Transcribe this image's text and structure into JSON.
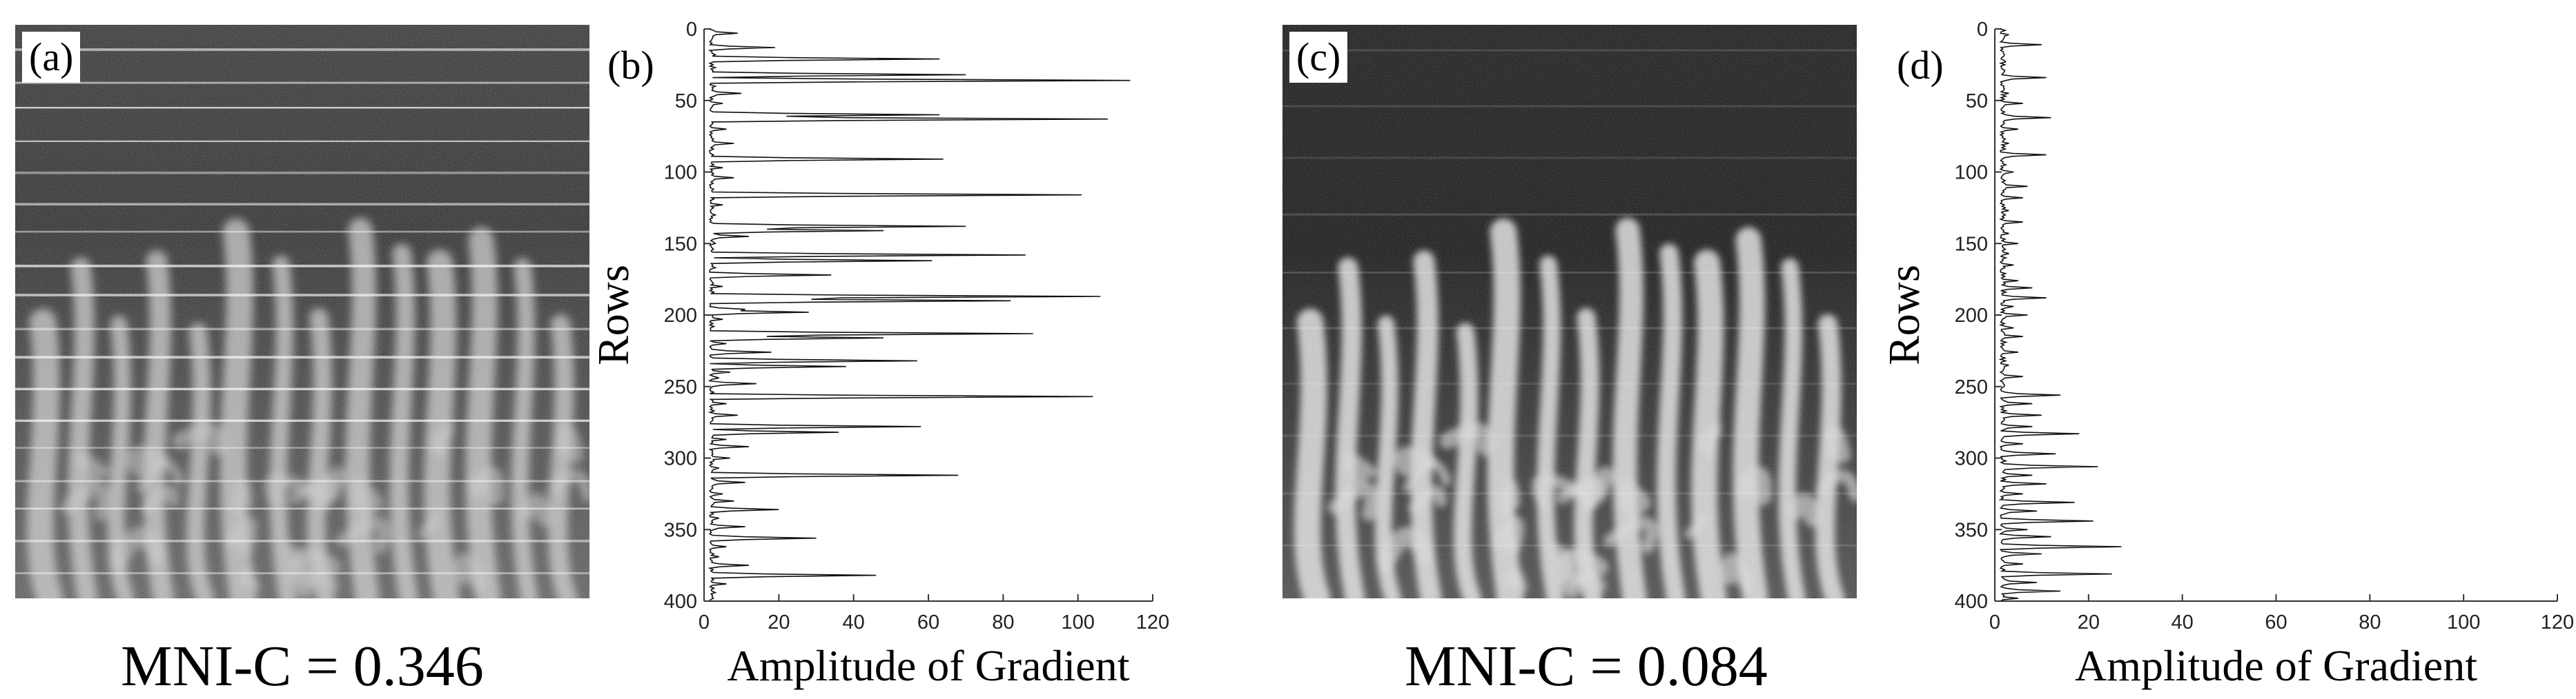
{
  "panels": {
    "a": {
      "tag": "(a)",
      "caption": "MNI-C = 0.346"
    },
    "b": {
      "tag": "(b)"
    },
    "c": {
      "tag": "(c)",
      "caption": "MNI-C = 0.084"
    },
    "d": {
      "tag": "(d)"
    }
  },
  "chart_data": [
    {
      "type": "line",
      "panel": "b",
      "orientation": "horizontal-profile",
      "xlabel": "Amplitude of Gradient",
      "ylabel": "Rows",
      "xlim": [
        0,
        120
      ],
      "ylim": [
        400,
        0
      ],
      "xticks": [
        0,
        20,
        40,
        60,
        80,
        100,
        120
      ],
      "yticks": [
        0,
        50,
        100,
        150,
        200,
        250,
        300,
        350,
        400
      ],
      "grid": false,
      "peaks": [
        [
          3,
          9
        ],
        [
          13,
          19
        ],
        [
          18,
          3
        ],
        [
          21,
          63
        ],
        [
          27,
          3
        ],
        [
          32,
          70
        ],
        [
          36,
          114
        ],
        [
          40,
          3
        ],
        [
          45,
          10
        ],
        [
          52,
          5
        ],
        [
          60,
          63
        ],
        [
          63,
          108
        ],
        [
          70,
          6
        ],
        [
          80,
          8
        ],
        [
          91,
          64
        ],
        [
          97,
          5
        ],
        [
          104,
          8
        ],
        [
          116,
          101
        ],
        [
          123,
          5
        ],
        [
          130,
          3
        ],
        [
          138,
          70
        ],
        [
          141,
          48
        ],
        [
          145,
          12
        ],
        [
          150,
          3
        ],
        [
          158,
          86
        ],
        [
          162,
          61
        ],
        [
          167,
          3
        ],
        [
          172,
          34
        ],
        [
          180,
          5
        ],
        [
          187,
          106
        ],
        [
          190,
          82
        ],
        [
          196,
          11
        ],
        [
          198,
          28
        ],
        [
          203,
          5
        ],
        [
          213,
          88
        ],
        [
          216,
          48
        ],
        [
          220,
          6
        ],
        [
          226,
          18
        ],
        [
          232,
          57
        ],
        [
          236,
          38
        ],
        [
          240,
          7
        ],
        [
          244,
          4
        ],
        [
          248,
          14
        ],
        [
          257,
          104
        ],
        [
          262,
          6
        ],
        [
          270,
          9
        ],
        [
          278,
          58
        ],
        [
          282,
          36
        ],
        [
          287,
          6
        ],
        [
          292,
          12
        ],
        [
          300,
          7
        ],
        [
          307,
          4
        ],
        [
          312,
          68
        ],
        [
          317,
          11
        ],
        [
          325,
          5
        ],
        [
          330,
          8
        ],
        [
          336,
          20
        ],
        [
          342,
          4
        ],
        [
          348,
          11
        ],
        [
          356,
          30
        ],
        [
          362,
          6
        ],
        [
          369,
          4
        ],
        [
          375,
          12
        ],
        [
          382,
          46
        ],
        [
          388,
          6
        ],
        [
          394,
          3
        ]
      ],
      "baseline": 1.5
    },
    {
      "type": "line",
      "panel": "d",
      "orientation": "horizontal-profile",
      "xlabel": "Amplitude of Gradient",
      "ylabel": "Rows",
      "xlim": [
        0,
        120
      ],
      "ylim": [
        400,
        0
      ],
      "xticks": [
        0,
        20,
        40,
        60,
        80,
        100,
        120
      ],
      "yticks": [
        0,
        50,
        100,
        150,
        200,
        250,
        300,
        350,
        400
      ],
      "grid": false,
      "peaks": [
        [
          4,
          3
        ],
        [
          11,
          10
        ],
        [
          22,
          2
        ],
        [
          34,
          11
        ],
        [
          45,
          3
        ],
        [
          52,
          6
        ],
        [
          62,
          12
        ],
        [
          70,
          5
        ],
        [
          80,
          3
        ],
        [
          88,
          11
        ],
        [
          100,
          4
        ],
        [
          110,
          7
        ],
        [
          118,
          6
        ],
        [
          127,
          3
        ],
        [
          135,
          6
        ],
        [
          143,
          3
        ],
        [
          150,
          5
        ],
        [
          157,
          3
        ],
        [
          165,
          4
        ],
        [
          176,
          5
        ],
        [
          181,
          8
        ],
        [
          188,
          11
        ],
        [
          194,
          4
        ],
        [
          200,
          7
        ],
        [
          209,
          4
        ],
        [
          215,
          6
        ],
        [
          226,
          5
        ],
        [
          235,
          3
        ],
        [
          243,
          6
        ],
        [
          256,
          14
        ],
        [
          262,
          8
        ],
        [
          270,
          10
        ],
        [
          278,
          8
        ],
        [
          283,
          18
        ],
        [
          290,
          6
        ],
        [
          297,
          13
        ],
        [
          306,
          22
        ],
        [
          312,
          8
        ],
        [
          318,
          11
        ],
        [
          325,
          6
        ],
        [
          331,
          17
        ],
        [
          337,
          9
        ],
        [
          344,
          21
        ],
        [
          350,
          7
        ],
        [
          355,
          12
        ],
        [
          362,
          27
        ],
        [
          367,
          10
        ],
        [
          374,
          6
        ],
        [
          381,
          25
        ],
        [
          387,
          9
        ],
        [
          393,
          14
        ],
        [
          398,
          5
        ]
      ],
      "baseline": 1.2
    }
  ]
}
